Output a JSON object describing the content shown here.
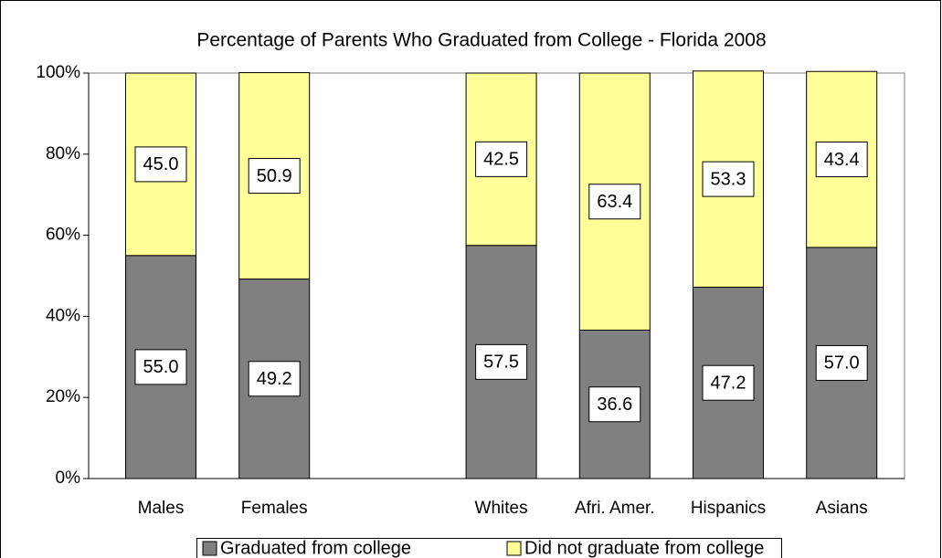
{
  "chart_data": {
    "type": "stacked_bar",
    "title": "Percentage of Parents Who Graduated from College - Florida 2008",
    "categories": [
      "Males",
      "Females",
      null,
      "Whites",
      "Afri. Amer.",
      "Hispanics",
      "Asians"
    ],
    "series": [
      {
        "name": "Graduated from college",
        "color": "#808080",
        "values": [
          55.0,
          49.2,
          null,
          57.5,
          36.6,
          47.2,
          57.0
        ],
        "value_labels": [
          "55.0",
          "49.2",
          null,
          "57.5",
          "36.6",
          "47.2",
          "57.0"
        ]
      },
      {
        "name": "Did not graduate from college",
        "color": "#ffff99",
        "values": [
          45.0,
          50.9,
          null,
          42.5,
          63.4,
          53.3,
          43.4
        ],
        "value_labels": [
          "45.0",
          "50.9",
          null,
          "42.5",
          "63.4",
          "53.3",
          "43.4"
        ]
      }
    ],
    "ylim": [
      0,
      100
    ],
    "yticks": [
      {
        "value": 0,
        "label": "0%"
      },
      {
        "value": 20,
        "label": "20%"
      },
      {
        "value": 40,
        "label": "40%"
      },
      {
        "value": 60,
        "label": "60%"
      },
      {
        "value": 80,
        "label": "80%"
      },
      {
        "value": 100,
        "label": "100%"
      }
    ],
    "legend": "bottom"
  }
}
